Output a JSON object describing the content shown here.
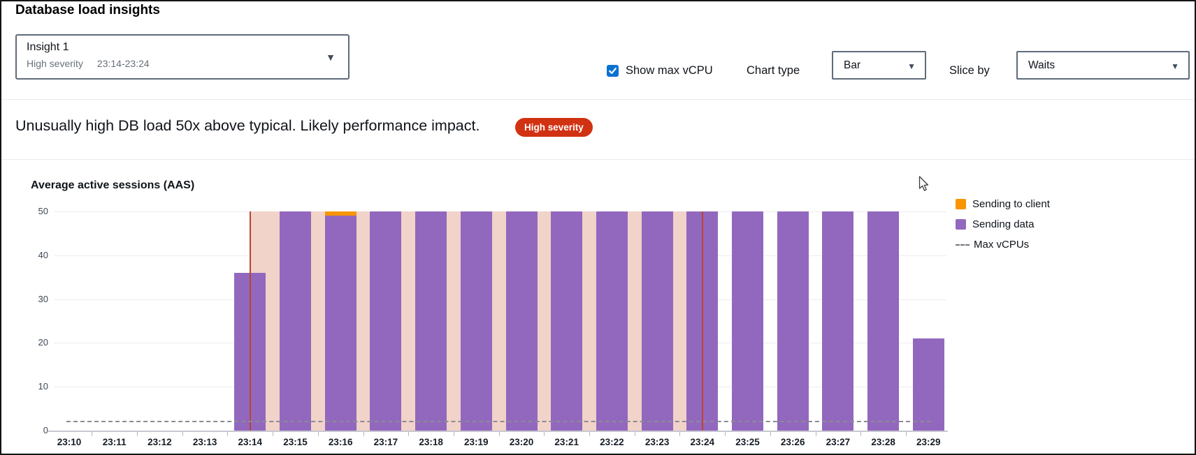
{
  "header": {
    "title": "Database load insights",
    "insight_select": {
      "label": "Insight 1",
      "severity": "High severity",
      "time_range": "23:14-23:24"
    },
    "show_max_vcpu": {
      "label": "Show max vCPU",
      "checked": true
    },
    "chart_type": {
      "label": "Chart type",
      "value": "Bar"
    },
    "slice_by": {
      "label": "Slice by",
      "value": "Waits"
    }
  },
  "alert": {
    "message": "Unusually high DB load 50x above typical. Likely performance impact.",
    "badge": "High severity",
    "badge_color": "#d13212"
  },
  "icons": {
    "dropdown_caret": "▼"
  },
  "colors": {
    "checkbox_blue": "#0972d3",
    "grid": "#ededf2",
    "axis": "#c7c7d1",
    "dashed_line": "#8b8b93"
  },
  "chart_data": {
    "type": "bar",
    "title": "Average active sessions (AAS)",
    "categories": [
      "23:10",
      "23:11",
      "23:12",
      "23:13",
      "23:14",
      "23:15",
      "23:16",
      "23:17",
      "23:18",
      "23:19",
      "23:20",
      "23:21",
      "23:22",
      "23:23",
      "23:24",
      "23:25",
      "23:26",
      "23:27",
      "23:28",
      "23:29"
    ],
    "series": [
      {
        "name": "Sending to client",
        "color": "#f89500",
        "values": [
          0,
          0,
          0,
          0,
          0,
          0,
          1,
          0,
          0,
          0,
          0,
          0,
          0,
          0,
          0,
          0,
          0,
          0,
          0,
          0
        ]
      },
      {
        "name": "Sending data",
        "color": "#9268be",
        "values": [
          0,
          0,
          0,
          0,
          36,
          50,
          49,
          50,
          50,
          50,
          50,
          50,
          50,
          50,
          50,
          50,
          50,
          50,
          50,
          21
        ]
      }
    ],
    "max_vcpus": {
      "label": "Max vCPUs",
      "value": 2
    },
    "ylim": [
      0,
      50
    ],
    "yticks": [
      0,
      10,
      20,
      30,
      40,
      50
    ],
    "xlabel": "",
    "ylabel": "Average active sessions (AAS)",
    "grid": "horizontal",
    "legend_position": "right",
    "highlight": {
      "from_time": "23:14",
      "to_time": "23:24",
      "color": "#f1d3c9",
      "boundary_color": "#bc4430"
    }
  }
}
